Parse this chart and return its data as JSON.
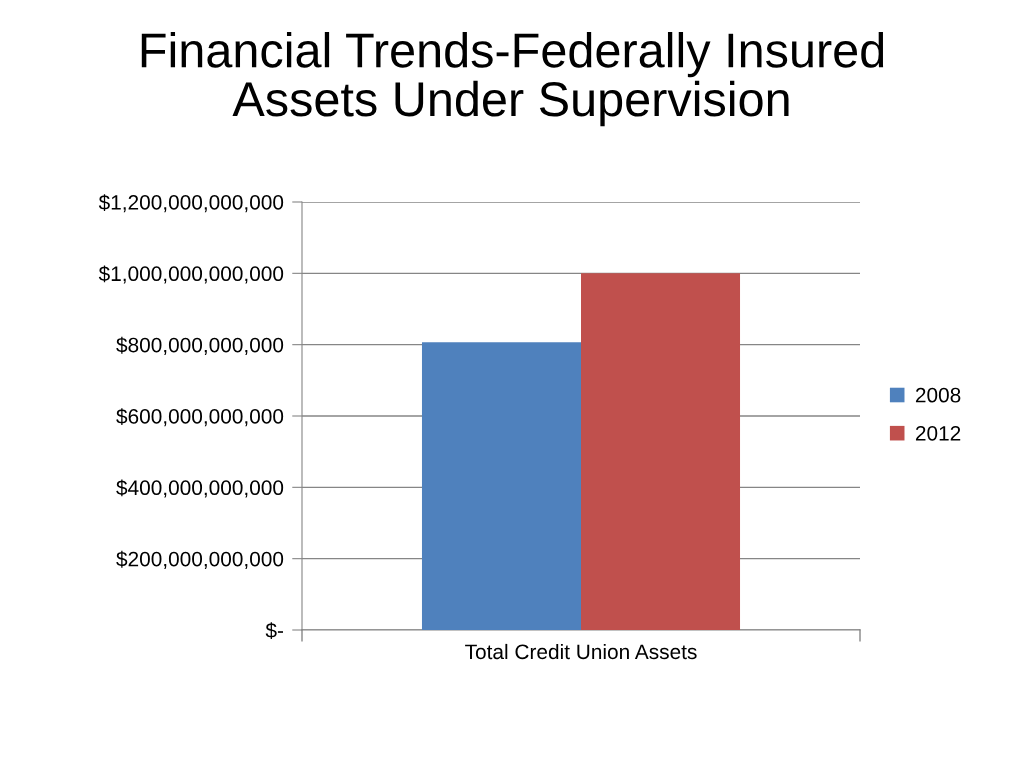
{
  "chart_data": {
    "type": "bar",
    "title": "Financial Trends-Federally Insured Assets Under Supervision",
    "categories": [
      "Total Credit Union Assets"
    ],
    "series": [
      {
        "name": "2008",
        "color": "#4f81bd",
        "values": [
          807000000000
        ]
      },
      {
        "name": "2012",
        "color": "#c0504d",
        "values": [
          1000000000000
        ]
      }
    ],
    "ylim": [
      0,
      1200000000000
    ],
    "yticks": [
      {
        "value": 0,
        "label": "$-"
      },
      {
        "value": 200000000000,
        "label": "$200,000,000,000"
      },
      {
        "value": 400000000000,
        "label": "$400,000,000,000"
      },
      {
        "value": 600000000000,
        "label": "$600,000,000,000"
      },
      {
        "value": 800000000000,
        "label": "$800,000,000,000"
      },
      {
        "value": 1000000000000,
        "label": "$1,000,000,000,000"
      },
      {
        "value": 1200000000000,
        "label": "$1,200,000,000,000"
      }
    ],
    "grid": "y",
    "legend": "right"
  }
}
